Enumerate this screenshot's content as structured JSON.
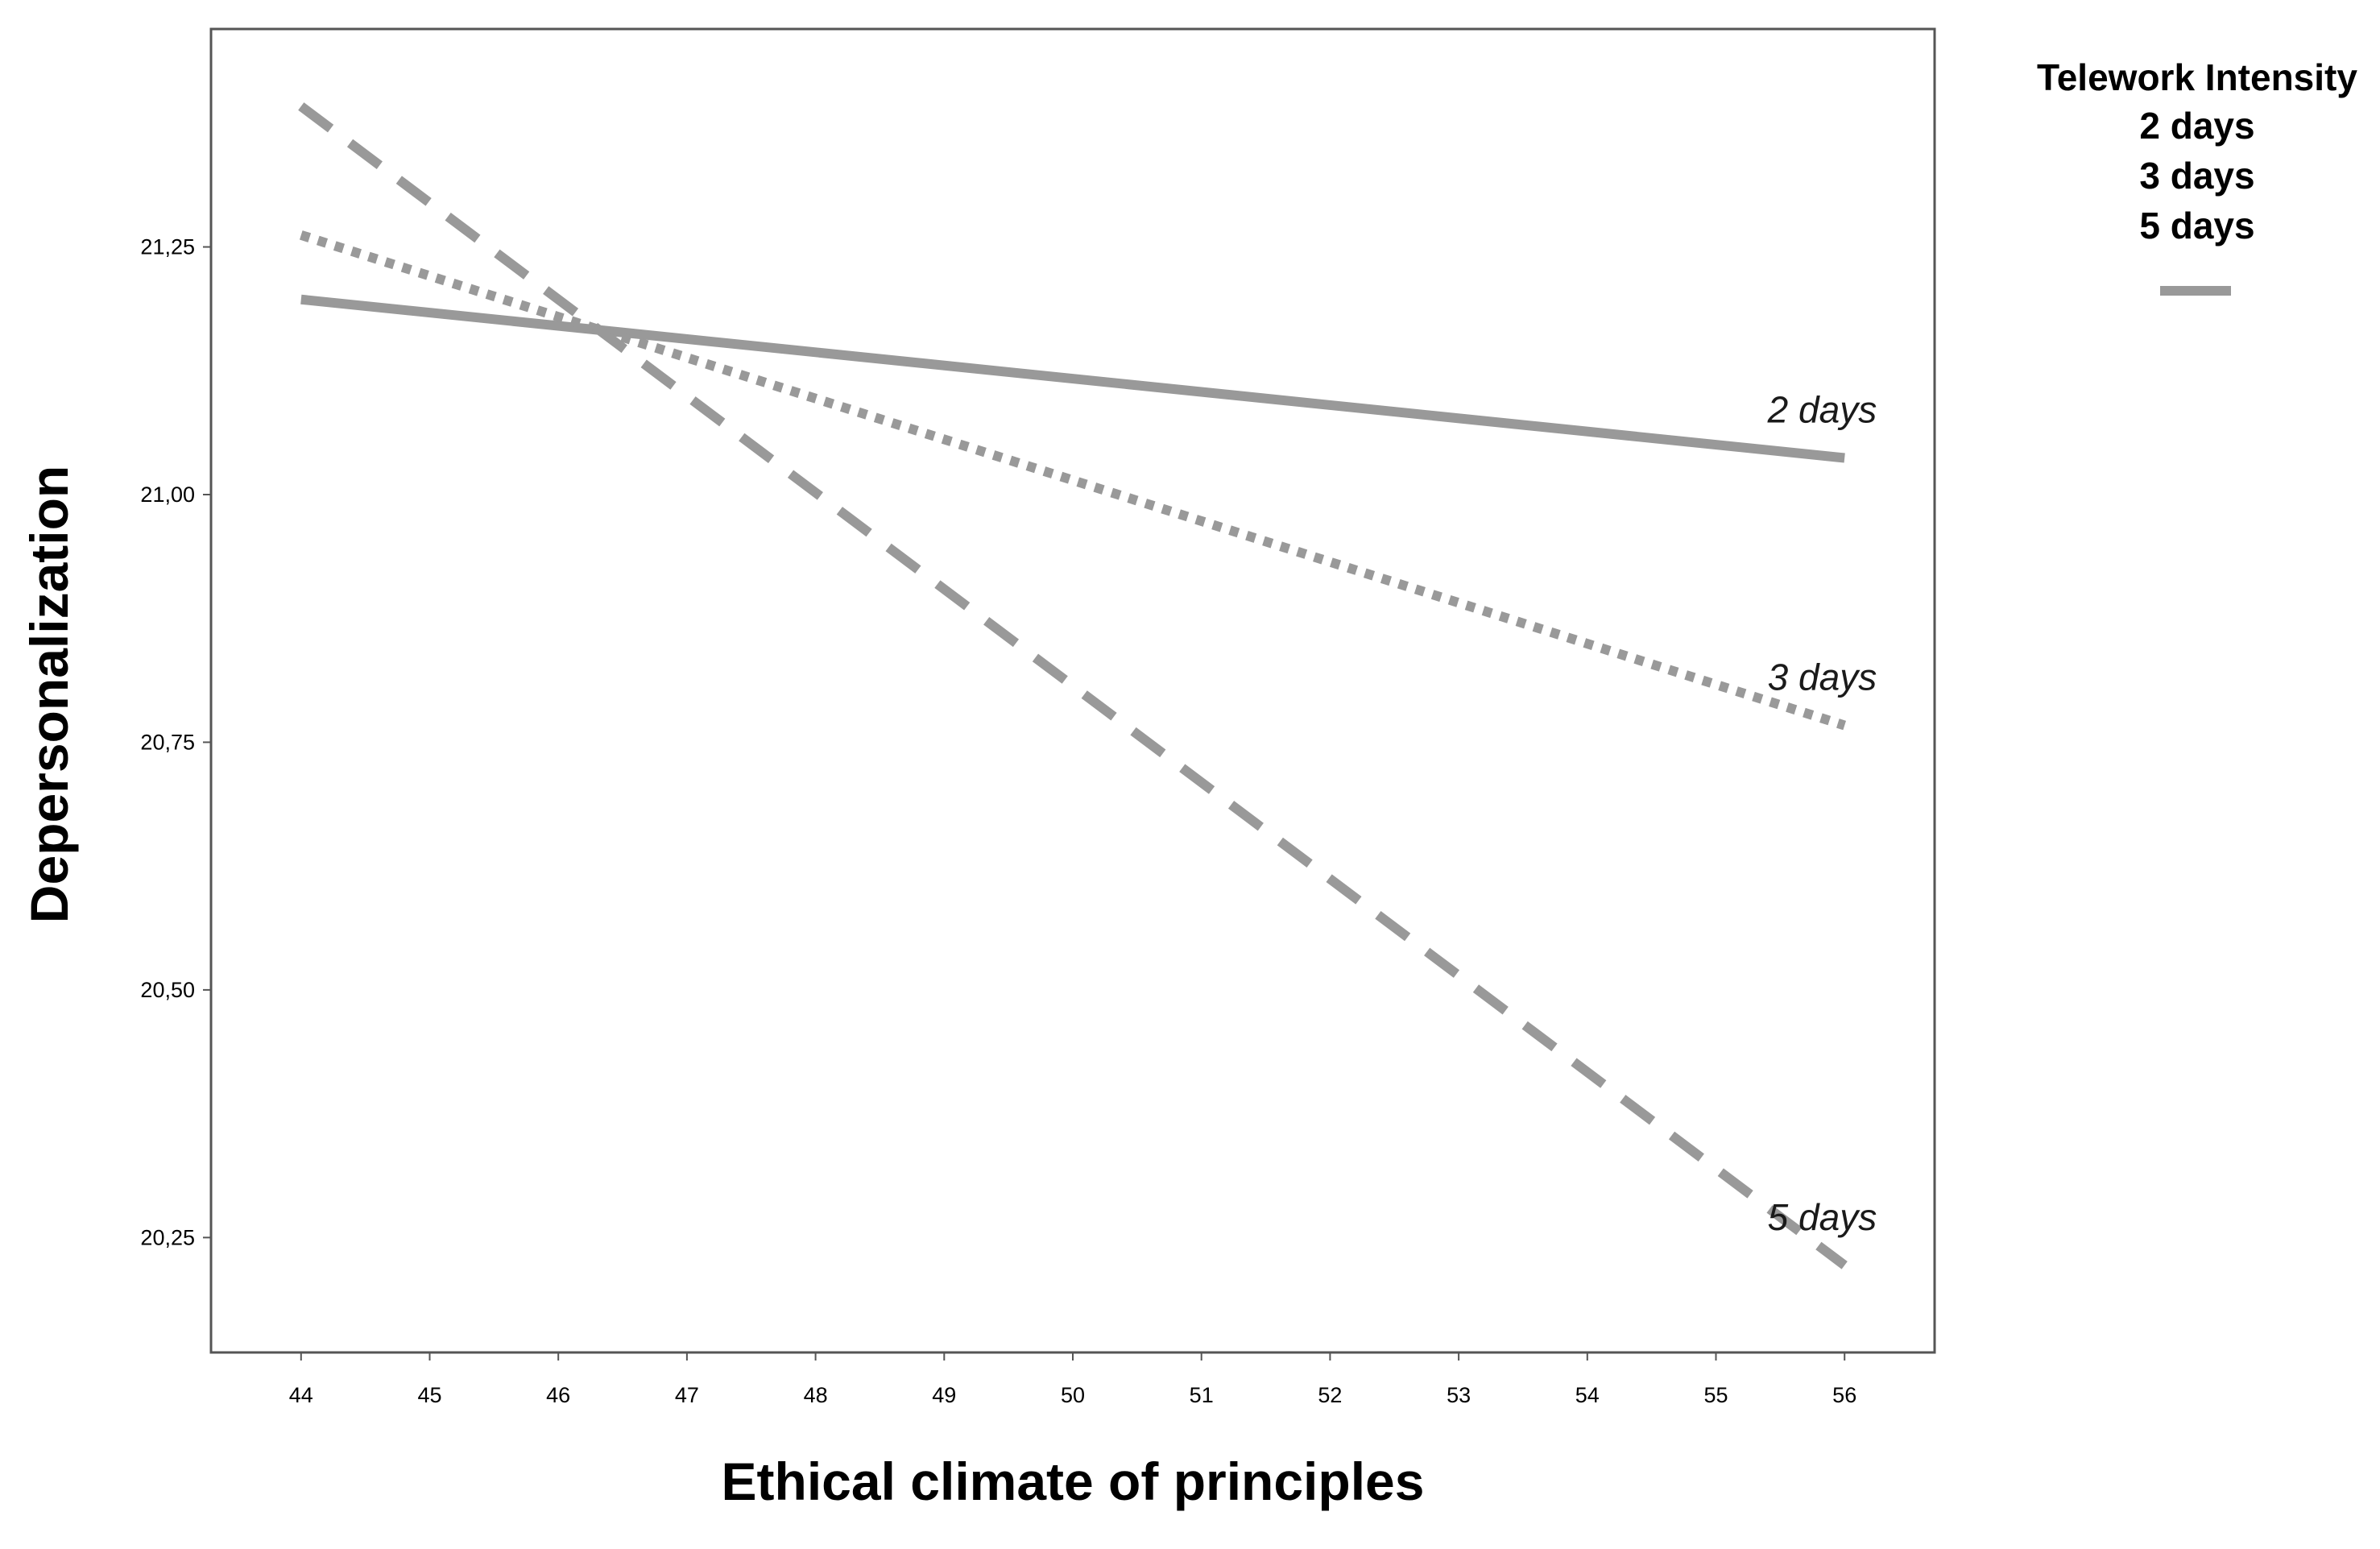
{
  "chart_data": {
    "type": "line",
    "xlabel": "Ethical climate of principles",
    "ylabel": "Depersonalization",
    "x": [
      44,
      56
    ],
    "xlim": [
      43.3,
      56.7
    ],
    "ylim": [
      20.134,
      21.47
    ],
    "xticks": [
      44,
      45,
      46,
      47,
      48,
      49,
      50,
      51,
      52,
      53,
      54,
      55,
      56
    ],
    "yticks": [
      20.25,
      20.5,
      20.75,
      21.0,
      21.25
    ],
    "ytick_labels": [
      "20,25",
      "20,50",
      "20,75",
      "21,00",
      "21,25"
    ],
    "grid": false,
    "legend": {
      "title": "Telework Intensity",
      "entries": [
        "2 days",
        "3 days",
        "5 days"
      ],
      "placement": "top-right outside"
    },
    "series": [
      {
        "name": "2 days",
        "values": [
          21.197,
          21.037
        ],
        "style": "solid",
        "color": "#999999"
      },
      {
        "name": "3 days",
        "values": [
          21.262,
          20.767
        ],
        "style": "dotted",
        "color": "#999999"
      },
      {
        "name": "5 days",
        "values": [
          21.392,
          20.222
        ],
        "style": "dashed",
        "color": "#999999"
      }
    ]
  }
}
